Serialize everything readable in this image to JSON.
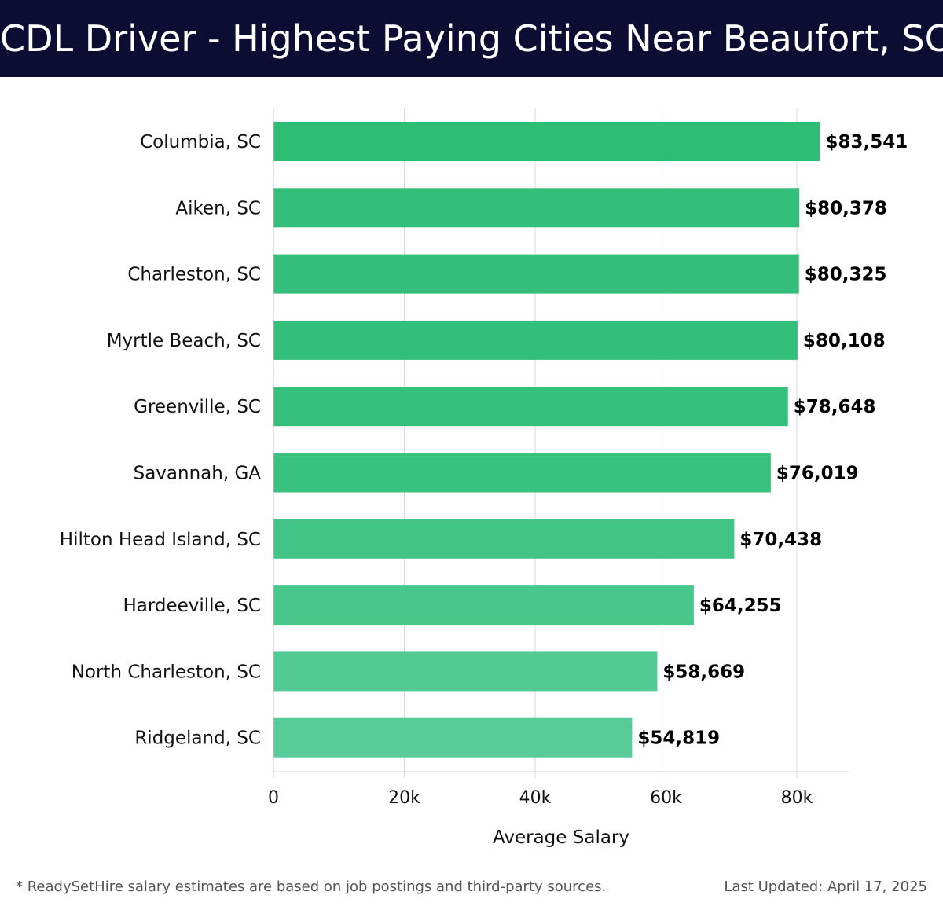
{
  "header": {
    "title": "CDL Driver - Highest Paying Cities Near Beaufort, SC"
  },
  "footer": {
    "note": "* ReadySetHire salary estimates are based on job postings and third-party sources.",
    "updated": "Last Updated: April 17, 2025"
  },
  "chart_data": {
    "type": "bar",
    "orientation": "horizontal",
    "title": "CDL Driver - Highest Paying Cities Near Beaufort, SC",
    "xlabel": "Average Salary",
    "ylabel": "",
    "xlim": [
      0,
      88000
    ],
    "xticks": [
      0,
      20000,
      40000,
      60000,
      80000
    ],
    "xtick_labels": [
      "0",
      "20k",
      "40k",
      "60k",
      "80k"
    ],
    "grid": true,
    "categories": [
      "Columbia, SC",
      "Aiken, SC",
      "Charleston, SC",
      "Myrtle Beach, SC",
      "Greenville, SC",
      "Savannah, GA",
      "Hilton Head Island, SC",
      "Hardeeville, SC",
      "North Charleston, SC",
      "Ridgeland, SC"
    ],
    "values": [
      83541,
      80378,
      80325,
      80108,
      78648,
      76019,
      70438,
      64255,
      58669,
      54819
    ],
    "value_labels": [
      "$83,541",
      "$80,378",
      "$80,325",
      "$80,108",
      "$78,648",
      "$76,019",
      "$70,438",
      "$64,255",
      "$58,669",
      "$54,819"
    ],
    "colors": {
      "high": "#2ebd75",
      "low": "#58cc98",
      "header_bg": "#0b0d33"
    }
  }
}
